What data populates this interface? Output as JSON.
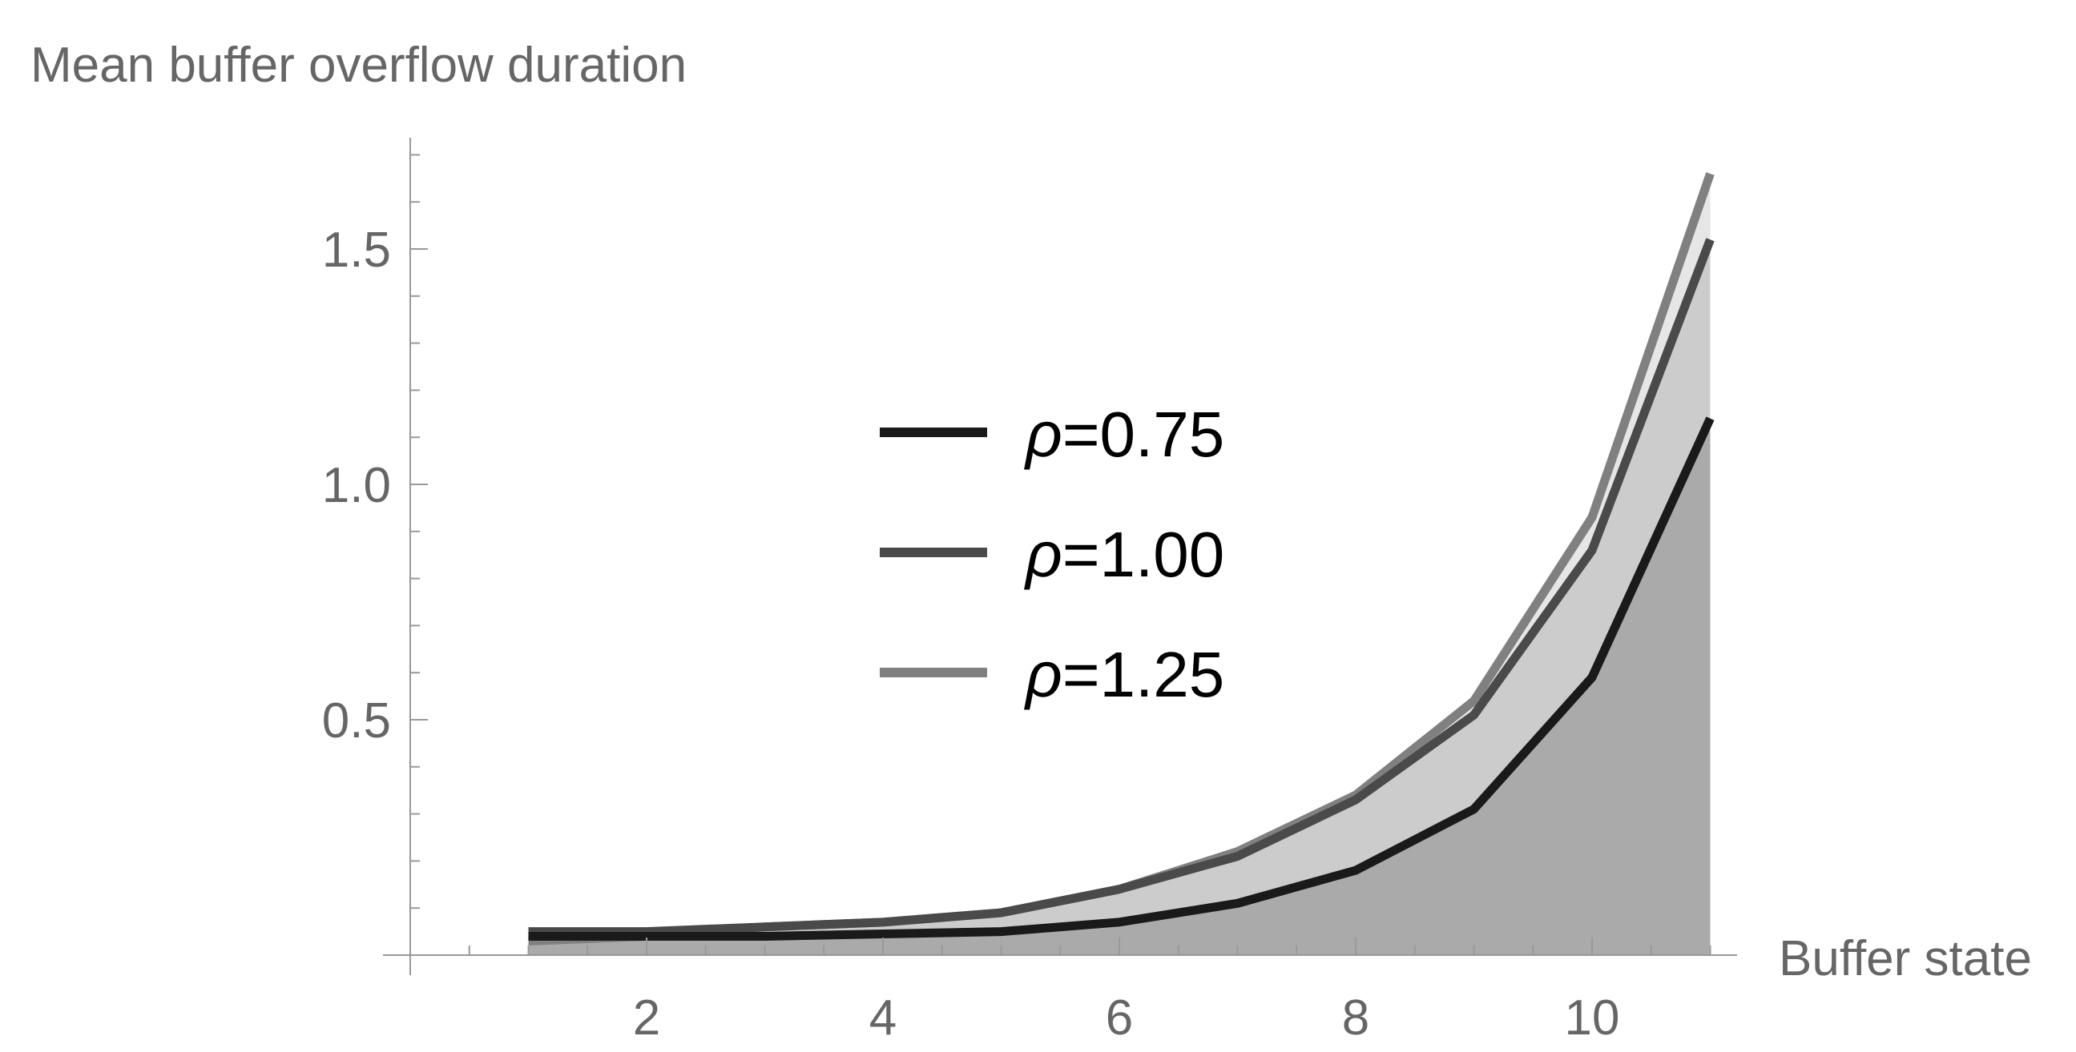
{
  "chart_data": {
    "type": "area",
    "title": "",
    "ylabel": "Mean buffer overflow duration",
    "xlabel": "Buffer state",
    "xlim": [
      0,
      11
    ],
    "ylim": [
      0,
      1.7
    ],
    "x": [
      1,
      2,
      3,
      4,
      5,
      6,
      7,
      8,
      9,
      10,
      11
    ],
    "x_ticks": [
      2,
      4,
      6,
      8,
      10
    ],
    "y_ticks": [
      0.5,
      1.0,
      1.5
    ],
    "x_tick_labels": [
      "2",
      "4",
      "6",
      "8",
      "10"
    ],
    "y_tick_labels": [
      "0.5",
      "1.0",
      "1.5"
    ],
    "grid": false,
    "legend_position": "center",
    "series": [
      {
        "name": "ρ=0.75",
        "rho": "ρ",
        "suffix": "=0.75",
        "color": "#1a1a1a",
        "fill": "#aaaaaa",
        "values": [
          0.04,
          0.04,
          0.04,
          0.045,
          0.05,
          0.07,
          0.11,
          0.18,
          0.31,
          0.59,
          1.14
        ]
      },
      {
        "name": "ρ=1.00",
        "rho": "ρ",
        "suffix": "=1.00",
        "color": "#4a4a4a",
        "fill": "#cccccc",
        "values": [
          0.05,
          0.05,
          0.06,
          0.07,
          0.09,
          0.14,
          0.21,
          0.33,
          0.51,
          0.86,
          1.52
        ]
      },
      {
        "name": "ρ=1.25",
        "rho": "ρ",
        "suffix": "=1.25",
        "color": "#808080",
        "fill": "#e6e6e6",
        "values": [
          0.03,
          0.04,
          0.06,
          0.07,
          0.09,
          0.14,
          0.22,
          0.34,
          0.54,
          0.93,
          1.66
        ]
      }
    ]
  }
}
